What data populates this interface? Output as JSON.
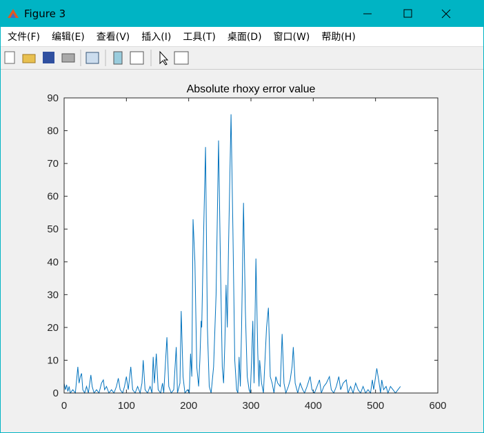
{
  "window": {
    "title": "Figure 3",
    "menu": [
      "文件(F)",
      "编辑(E)",
      "查看(V)",
      "插入(I)",
      "工具(T)",
      "桌面(D)",
      "窗口(W)",
      "帮助(H)"
    ]
  },
  "chart_data": {
    "type": "line",
    "title": "Absolute rhoxy error value",
    "color": "#0072bd",
    "xlim": [
      0,
      600
    ],
    "xticks": [
      0,
      100,
      200,
      300,
      400,
      500,
      600
    ],
    "ylim": [
      0,
      90
    ],
    "yticks": [
      0,
      10,
      20,
      30,
      40,
      50,
      60,
      70,
      80,
      90
    ],
    "x": [
      0,
      2,
      4,
      6,
      8,
      10,
      14,
      18,
      22,
      24,
      26,
      28,
      30,
      33,
      36,
      39,
      43,
      45,
      48,
      52,
      56,
      60,
      63,
      65,
      68,
      72,
      76,
      80,
      84,
      87,
      90,
      94,
      97,
      100,
      103,
      107,
      110,
      114,
      118,
      122,
      125,
      127,
      130,
      134,
      138,
      141,
      143,
      145,
      148,
      151,
      155,
      158,
      160,
      163,
      165,
      168,
      172,
      176,
      180,
      182,
      186,
      188,
      191,
      194,
      198,
      201,
      203,
      205,
      207,
      210,
      213,
      216,
      218,
      220,
      221,
      223,
      227,
      230,
      233,
      236,
      240,
      244,
      248,
      251,
      254,
      256,
      258,
      260,
      262,
      264,
      268,
      271,
      274,
      277,
      279,
      281,
      283,
      285,
      288,
      291,
      294,
      297,
      299,
      301,
      303,
      305,
      308,
      311,
      313,
      314,
      317,
      320,
      322,
      325,
      328,
      331,
      334,
      337,
      340,
      343,
      347,
      350,
      353,
      356,
      360,
      363,
      366,
      368,
      371,
      375,
      379,
      383,
      386,
      390,
      395,
      398,
      402,
      406,
      410,
      413,
      417,
      421,
      426,
      429,
      433,
      437,
      441,
      444,
      448,
      453,
      456,
      460,
      464,
      468,
      472,
      476,
      480,
      484,
      488,
      492,
      495,
      497,
      502,
      505,
      508,
      510,
      513,
      517,
      520,
      524,
      528,
      532,
      536,
      540
    ],
    "values": [
      3,
      1,
      2.5,
      0.5,
      2,
      0,
      1,
      0,
      8,
      3,
      5,
      6,
      1,
      0,
      2,
      0,
      5.5,
      2,
      0,
      1,
      0,
      3,
      4,
      1,
      2,
      0,
      1,
      0,
      2,
      4.5,
      1,
      0,
      2,
      5,
      1,
      8,
      1,
      0,
      2,
      0,
      3,
      10,
      1,
      0,
      2,
      0,
      11,
      3,
      12,
      1,
      0,
      3,
      0,
      10,
      17,
      2,
      0,
      1,
      14,
      0,
      3,
      25,
      5,
      0,
      1,
      0,
      12,
      5,
      53,
      40,
      8,
      2,
      10,
      22,
      20,
      40,
      75,
      20,
      2,
      0,
      8,
      30,
      77,
      40,
      8,
      3,
      15,
      33,
      20,
      45,
      85,
      50,
      10,
      1,
      0,
      11,
      2,
      20,
      58,
      25,
      5,
      1,
      0,
      10,
      22,
      3,
      41,
      12,
      2,
      10,
      3,
      0,
      8,
      20,
      26,
      5,
      3,
      0,
      5,
      3,
      2,
      18,
      3,
      0,
      2,
      4,
      8,
      14,
      3,
      0,
      3,
      1,
      0,
      2,
      5,
      1,
      0,
      2,
      4,
      0,
      2,
      3,
      5,
      1,
      0,
      2,
      5,
      1,
      3,
      4,
      0,
      2,
      0,
      3,
      1,
      0,
      2,
      0,
      1,
      0,
      4,
      1,
      7.5,
      4,
      0,
      4,
      1,
      2,
      0,
      2,
      1,
      0,
      1,
      2
    ]
  }
}
